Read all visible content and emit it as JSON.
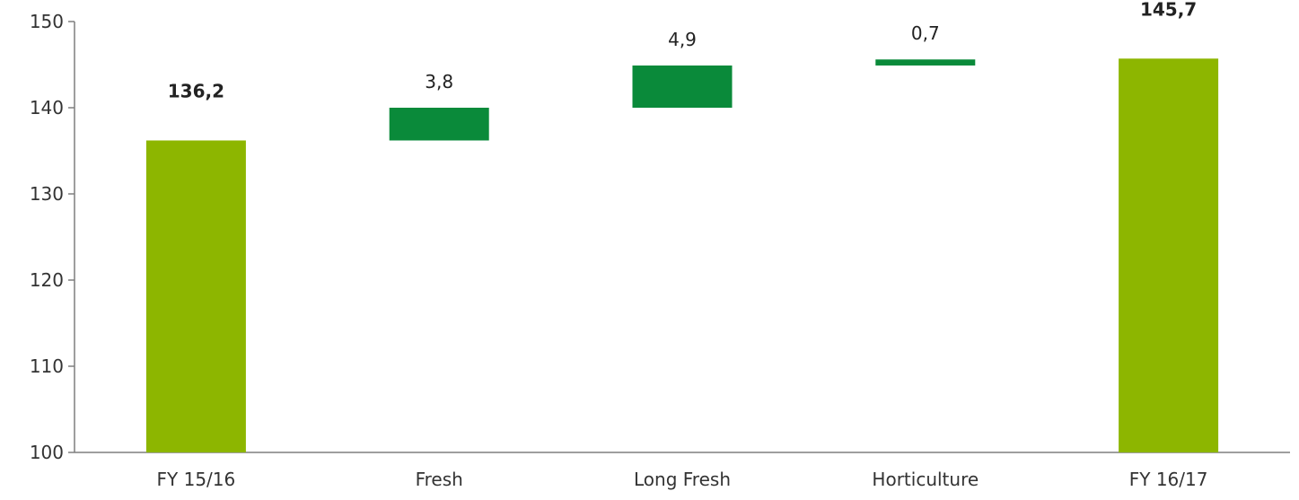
{
  "chart_data": {
    "type": "bar",
    "subtype": "waterfall",
    "categories": [
      "FY 15/16",
      "Fresh",
      "Long Fresh",
      "Horticulture",
      "FY 16/17"
    ],
    "bars": [
      {
        "category": "FY 15/16",
        "kind": "total",
        "start": 100,
        "end": 136.2,
        "label": "136,2"
      },
      {
        "category": "Fresh",
        "kind": "delta",
        "start": 136.2,
        "end": 140.0,
        "label": "3,8"
      },
      {
        "category": "Long Fresh",
        "kind": "delta",
        "start": 140.0,
        "end": 144.9,
        "label": "4,9"
      },
      {
        "category": "Horticulture",
        "kind": "delta",
        "start": 144.9,
        "end": 145.6,
        "label": "0,7"
      },
      {
        "category": "FY 16/17",
        "kind": "total",
        "start": 100,
        "end": 145.7,
        "label": "145,7"
      }
    ],
    "title": "",
    "xlabel": "",
    "ylabel": "",
    "ylim": [
      100,
      150
    ],
    "yticks": [
      "100",
      "110",
      "120",
      "130",
      "140",
      "150"
    ],
    "grid": false,
    "legend": "none",
    "colors": {
      "total": "#8db600",
      "delta": "#0a8a3a",
      "axis": "#7f7f7f"
    }
  }
}
